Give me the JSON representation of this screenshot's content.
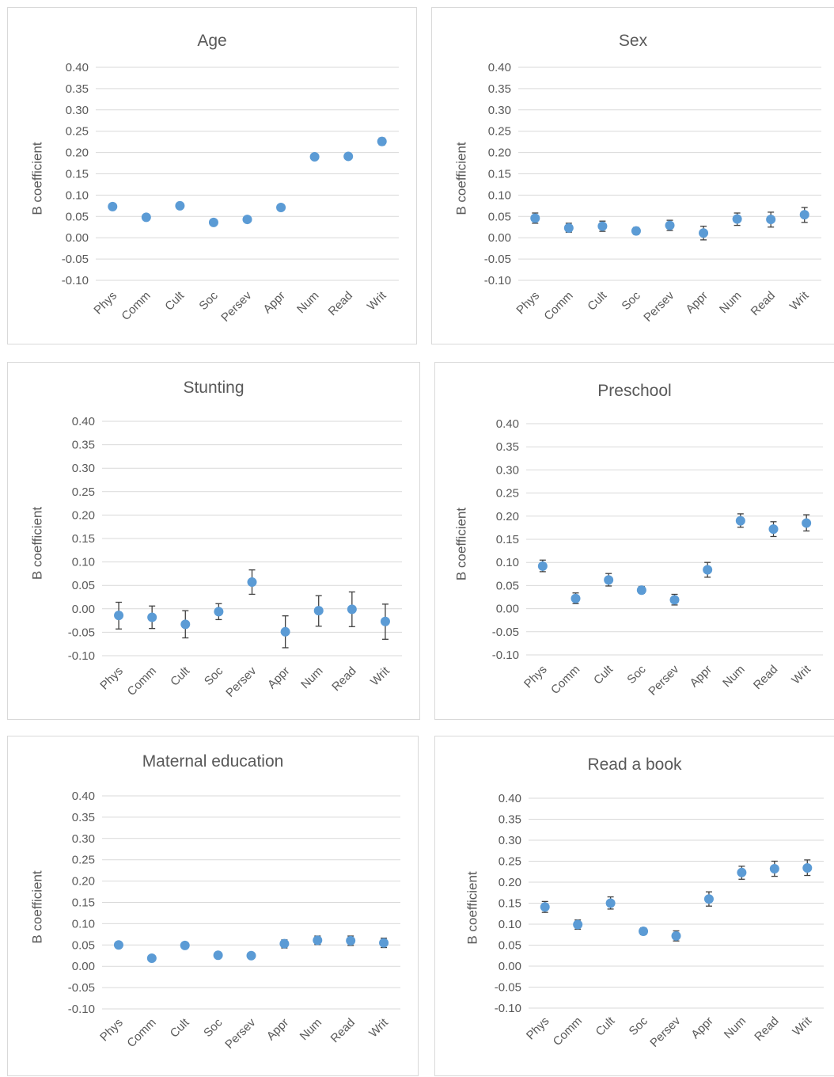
{
  "chart_data": [
    {
      "type": "scatter",
      "title": "Age",
      "ylabel": "B coefficient",
      "xlabel": "",
      "categories": [
        "Phys",
        "Comm",
        "Cult",
        "Soc",
        "Persev",
        "Appr",
        "Num",
        "Read",
        "Writ"
      ],
      "values": [
        0.073,
        0.048,
        0.075,
        0.036,
        0.043,
        0.071,
        0.19,
        0.191,
        0.226
      ],
      "error_low": [
        0.067,
        0.042,
        0.069,
        0.031,
        0.037,
        0.064,
        0.184,
        0.185,
        0.218
      ],
      "error_high": [
        0.079,
        0.054,
        0.081,
        0.041,
        0.049,
        0.078,
        0.196,
        0.197,
        0.234
      ],
      "ylim": [
        -0.1,
        0.4
      ],
      "yticks": [
        "0.40",
        "0.35",
        "0.30",
        "0.25",
        "0.20",
        "0.15",
        "0.10",
        "0.05",
        "0.00",
        "-0.05",
        "-0.10"
      ],
      "grid": true,
      "color": "#5b9bd5"
    },
    {
      "type": "scatter",
      "title": "Sex",
      "ylabel": "B coefficient",
      "xlabel": "",
      "categories": [
        "Phys",
        "Comm",
        "Cult",
        "Soc",
        "Persev",
        "Appr",
        "Num",
        "Read",
        "Writ"
      ],
      "values": [
        0.046,
        0.023,
        0.027,
        0.016,
        0.029,
        0.011,
        0.044,
        0.043,
        0.054
      ],
      "error_low": [
        0.034,
        0.013,
        0.015,
        0.008,
        0.017,
        -0.005,
        0.029,
        0.025,
        0.036
      ],
      "error_high": [
        0.058,
        0.034,
        0.039,
        0.024,
        0.041,
        0.027,
        0.058,
        0.06,
        0.071
      ],
      "ylim": [
        -0.1,
        0.4
      ],
      "yticks": [
        "0.40",
        "0.35",
        "0.30",
        "0.25",
        "0.20",
        "0.15",
        "0.10",
        "0.05",
        "0.00",
        "-0.05",
        "-0.10"
      ],
      "grid": true,
      "color": "#5b9bd5"
    },
    {
      "type": "scatter",
      "title": "Stunting",
      "ylabel": "B coefficient",
      "xlabel": "",
      "categories": [
        "Phys",
        "Comm",
        "Cult",
        "Soc",
        "Persev",
        "Appr",
        "Num",
        "Read",
        "Writ"
      ],
      "values": [
        -0.014,
        -0.018,
        -0.033,
        -0.006,
        0.057,
        -0.049,
        -0.004,
        -0.001,
        -0.027
      ],
      "error_low": [
        -0.043,
        -0.042,
        -0.062,
        -0.023,
        0.031,
        -0.083,
        -0.037,
        -0.038,
        -0.065
      ],
      "error_high": [
        0.014,
        0.006,
        -0.004,
        0.011,
        0.083,
        -0.015,
        0.028,
        0.036,
        0.01
      ],
      "ylim": [
        -0.1,
        0.4
      ],
      "yticks": [
        "0.40",
        "0.35",
        "0.30",
        "0.25",
        "0.20",
        "0.15",
        "0.10",
        "0.05",
        "0.00",
        "-0.05",
        "-0.10"
      ],
      "grid": true,
      "color": "#5b9bd5"
    },
    {
      "type": "scatter",
      "title": "Preschool",
      "ylabel": "B coefficient",
      "xlabel": "",
      "categories": [
        "Phys",
        "Comm",
        "Cult",
        "Soc",
        "Persev",
        "Appr",
        "Num",
        "Read",
        "Writ"
      ],
      "values": [
        0.092,
        0.022,
        0.062,
        0.04,
        0.019,
        0.084,
        0.19,
        0.172,
        0.185
      ],
      "error_low": [
        0.08,
        0.011,
        0.049,
        0.033,
        0.008,
        0.068,
        0.176,
        0.156,
        0.168
      ],
      "error_high": [
        0.105,
        0.034,
        0.076,
        0.048,
        0.031,
        0.1,
        0.205,
        0.188,
        0.203
      ],
      "ylim": [
        -0.1,
        0.4
      ],
      "yticks": [
        "0.40",
        "0.35",
        "0.30",
        "0.25",
        "0.20",
        "0.15",
        "0.10",
        "0.05",
        "0.00",
        "-0.05",
        "-0.10"
      ],
      "grid": true,
      "color": "#5b9bd5"
    },
    {
      "type": "scatter",
      "title": "Maternal education",
      "ylabel": "B coefficient",
      "xlabel": "",
      "categories": [
        "Phys",
        "Comm",
        "Cult",
        "Soc",
        "Persev",
        "Appr",
        "Num",
        "Read",
        "Writ"
      ],
      "values": [
        0.05,
        0.019,
        0.049,
        0.026,
        0.025,
        0.053,
        0.061,
        0.06,
        0.055
      ],
      "error_low": [
        0.043,
        0.013,
        0.042,
        0.021,
        0.02,
        0.043,
        0.051,
        0.049,
        0.044
      ],
      "error_high": [
        0.056,
        0.025,
        0.056,
        0.031,
        0.03,
        0.062,
        0.071,
        0.071,
        0.066
      ],
      "ylim": [
        -0.1,
        0.4
      ],
      "yticks": [
        "0.40",
        "0.35",
        "0.30",
        "0.25",
        "0.20",
        "0.15",
        "0.10",
        "0.05",
        "0.00",
        "-0.05",
        "-0.10"
      ],
      "grid": true,
      "color": "#5b9bd5"
    },
    {
      "type": "scatter",
      "title": "Read a book",
      "ylabel": "B coefficient",
      "xlabel": "",
      "categories": [
        "Phys",
        "Comm",
        "Cult",
        "Soc",
        "Persev",
        "Appr",
        "Num",
        "Read",
        "Writ"
      ],
      "values": [
        0.141,
        0.099,
        0.15,
        0.083,
        0.072,
        0.16,
        0.223,
        0.232,
        0.234
      ],
      "error_low": [
        0.128,
        0.088,
        0.136,
        0.075,
        0.06,
        0.143,
        0.207,
        0.214,
        0.216
      ],
      "error_high": [
        0.154,
        0.11,
        0.165,
        0.091,
        0.084,
        0.177,
        0.238,
        0.25,
        0.253
      ],
      "ylim": [
        -0.1,
        0.4
      ],
      "yticks": [
        "0.40",
        "0.35",
        "0.30",
        "0.25",
        "0.20",
        "0.15",
        "0.10",
        "0.05",
        "0.00",
        "-0.05",
        "-0.10"
      ],
      "grid": true,
      "color": "#5b9bd5"
    }
  ]
}
